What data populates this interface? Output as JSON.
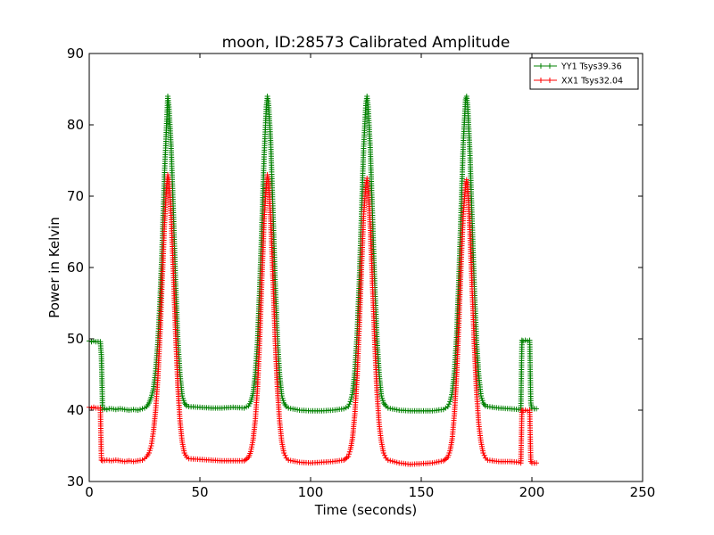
{
  "chart_data": {
    "type": "line",
    "title": "moon, ID:28573 Calibrated Amplitude",
    "xlabel": "Time (seconds)",
    "ylabel": "Power in Kelvin",
    "xlim": [
      0,
      250
    ],
    "ylim": [
      30,
      90
    ],
    "xticks": [
      0,
      50,
      100,
      150,
      200,
      250
    ],
    "yticks": [
      30,
      40,
      50,
      60,
      70,
      80,
      90
    ],
    "grid": false,
    "legend_position": "top-right",
    "marker": "+",
    "series": [
      {
        "name": "YY1 Tsys39.36",
        "color": "#008000",
        "points": [
          [
            0,
            49.7
          ],
          [
            1,
            49.6
          ],
          [
            2,
            49.7
          ],
          [
            3,
            49.6
          ],
          [
            4,
            49.6
          ],
          [
            5,
            49.6
          ],
          [
            5.5,
            47.5
          ],
          [
            6,
            40.1
          ],
          [
            7,
            40.2
          ],
          [
            8,
            40.1
          ],
          [
            9,
            40.2
          ],
          [
            10,
            40.2
          ],
          [
            12,
            40.1
          ],
          [
            14,
            40.2
          ],
          [
            16,
            40.1
          ],
          [
            18,
            40.0
          ],
          [
            20,
            40.1
          ],
          [
            22,
            40.0
          ],
          [
            24,
            40.2
          ],
          [
            25,
            40.3
          ],
          [
            26,
            40.5
          ],
          [
            27,
            41.0
          ],
          [
            28,
            41.8
          ],
          [
            29,
            43.0
          ],
          [
            30,
            45.5
          ],
          [
            31,
            49.5
          ],
          [
            32,
            55.5
          ],
          [
            33,
            63.5
          ],
          [
            34,
            73.0
          ],
          [
            35,
            80.5
          ],
          [
            35.5,
            84.0
          ],
          [
            36,
            82.5
          ],
          [
            37,
            77.0
          ],
          [
            38,
            68.0
          ],
          [
            39,
            58.0
          ],
          [
            40,
            50.0
          ],
          [
            41,
            45.0
          ],
          [
            42,
            42.0
          ],
          [
            43,
            41.0
          ],
          [
            44,
            40.6
          ],
          [
            45,
            40.5
          ],
          [
            50,
            40.4
          ],
          [
            55,
            40.3
          ],
          [
            60,
            40.3
          ],
          [
            65,
            40.4
          ],
          [
            70,
            40.3
          ],
          [
            72,
            40.6
          ],
          [
            73,
            41.2
          ],
          [
            74,
            42.3
          ],
          [
            75,
            45.0
          ],
          [
            76,
            49.5
          ],
          [
            77,
            57.0
          ],
          [
            78,
            66.0
          ],
          [
            79,
            75.5
          ],
          [
            80,
            82.5
          ],
          [
            80.5,
            84.0
          ],
          [
            81,
            83.0
          ],
          [
            82,
            77.5
          ],
          [
            83,
            68.0
          ],
          [
            84,
            58.0
          ],
          [
            85,
            50.0
          ],
          [
            86,
            45.0
          ],
          [
            87,
            42.0
          ],
          [
            88,
            41.0
          ],
          [
            89,
            40.5
          ],
          [
            90,
            40.3
          ],
          [
            95,
            40.0
          ],
          [
            100,
            39.9
          ],
          [
            105,
            39.9
          ],
          [
            110,
            40.0
          ],
          [
            115,
            40.2
          ],
          [
            117,
            40.5
          ],
          [
            118,
            41.2
          ],
          [
            119,
            42.5
          ],
          [
            120,
            45.5
          ],
          [
            121,
            50.5
          ],
          [
            122,
            58.0
          ],
          [
            123,
            67.5
          ],
          [
            124,
            77.0
          ],
          [
            125,
            83.0
          ],
          [
            125.5,
            84.0
          ],
          [
            126,
            82.5
          ],
          [
            127,
            76.5
          ],
          [
            128,
            67.0
          ],
          [
            129,
            57.5
          ],
          [
            130,
            50.0
          ],
          [
            131,
            45.0
          ],
          [
            132,
            42.0
          ],
          [
            133,
            41.0
          ],
          [
            134,
            40.6
          ],
          [
            135,
            40.3
          ],
          [
            140,
            40.0
          ],
          [
            145,
            39.9
          ],
          [
            150,
            39.9
          ],
          [
            155,
            39.9
          ],
          [
            160,
            40.1
          ],
          [
            162,
            40.5
          ],
          [
            163,
            41.2
          ],
          [
            164,
            42.5
          ],
          [
            165,
            45.5
          ],
          [
            166,
            50.5
          ],
          [
            167,
            58.5
          ],
          [
            168,
            68.0
          ],
          [
            169,
            77.5
          ],
          [
            170,
            83.5
          ],
          [
            170.5,
            84.0
          ],
          [
            171,
            82.5
          ],
          [
            172,
            76.0
          ],
          [
            173,
            66.5
          ],
          [
            174,
            57.0
          ],
          [
            175,
            49.5
          ],
          [
            176,
            44.8
          ],
          [
            177,
            42.0
          ],
          [
            178,
            41.0
          ],
          [
            179,
            40.6
          ],
          [
            180,
            40.5
          ],
          [
            185,
            40.3
          ],
          [
            190,
            40.2
          ],
          [
            194,
            40.1
          ],
          [
            195,
            40.0
          ],
          [
            195.5,
            49.8
          ],
          [
            196,
            49.7
          ],
          [
            197,
            49.8
          ],
          [
            198,
            49.7
          ],
          [
            199,
            49.8
          ],
          [
            199.5,
            41.0
          ],
          [
            200,
            40.2
          ],
          [
            201,
            40.2
          ],
          [
            202,
            40.2
          ]
        ]
      },
      {
        "name": "XX1 Tsys32.04",
        "color": "#ff0000",
        "points": [
          [
            0,
            40.4
          ],
          [
            1,
            40.3
          ],
          [
            2,
            40.4
          ],
          [
            3,
            40.3
          ],
          [
            4,
            40.3
          ],
          [
            5,
            40.3
          ],
          [
            5.5,
            33.0
          ],
          [
            6,
            32.9
          ],
          [
            8,
            33.0
          ],
          [
            10,
            32.9
          ],
          [
            12,
            33.0
          ],
          [
            14,
            32.9
          ],
          [
            16,
            32.8
          ],
          [
            18,
            32.9
          ],
          [
            20,
            32.8
          ],
          [
            22,
            32.9
          ],
          [
            24,
            33.0
          ],
          [
            25,
            33.2
          ],
          [
            26,
            33.5
          ],
          [
            27,
            34.0
          ],
          [
            28,
            35.0
          ],
          [
            29,
            37.0
          ],
          [
            30,
            40.0
          ],
          [
            31,
            44.5
          ],
          [
            32,
            51.0
          ],
          [
            33,
            58.5
          ],
          [
            34,
            66.0
          ],
          [
            35,
            71.5
          ],
          [
            35.5,
            73.0
          ],
          [
            36,
            72.0
          ],
          [
            37,
            67.0
          ],
          [
            38,
            59.5
          ],
          [
            39,
            51.0
          ],
          [
            40,
            43.5
          ],
          [
            41,
            38.5
          ],
          [
            42,
            35.5
          ],
          [
            43,
            34.0
          ],
          [
            44,
            33.4
          ],
          [
            45,
            33.2
          ],
          [
            50,
            33.1
          ],
          [
            55,
            33.0
          ],
          [
            60,
            32.9
          ],
          [
            65,
            32.9
          ],
          [
            70,
            32.9
          ],
          [
            72,
            33.4
          ],
          [
            73,
            34.2
          ],
          [
            74,
            35.8
          ],
          [
            75,
            38.5
          ],
          [
            76,
            43.0
          ],
          [
            77,
            50.0
          ],
          [
            78,
            58.5
          ],
          [
            79,
            66.5
          ],
          [
            80,
            71.5
          ],
          [
            80.5,
            73.0
          ],
          [
            81,
            72.0
          ],
          [
            82,
            66.5
          ],
          [
            83,
            58.5
          ],
          [
            84,
            50.0
          ],
          [
            85,
            43.0
          ],
          [
            86,
            38.5
          ],
          [
            87,
            35.5
          ],
          [
            88,
            34.0
          ],
          [
            89,
            33.3
          ],
          [
            90,
            33.0
          ],
          [
            95,
            32.7
          ],
          [
            100,
            32.6
          ],
          [
            105,
            32.7
          ],
          [
            110,
            32.8
          ],
          [
            115,
            33.0
          ],
          [
            117,
            33.5
          ],
          [
            118,
            34.5
          ],
          [
            119,
            36.2
          ],
          [
            120,
            39.5
          ],
          [
            121,
            44.5
          ],
          [
            122,
            52.0
          ],
          [
            123,
            60.0
          ],
          [
            124,
            67.5
          ],
          [
            125,
            71.5
          ],
          [
            125.5,
            72.5
          ],
          [
            126,
            71.0
          ],
          [
            127,
            65.5
          ],
          [
            128,
            57.5
          ],
          [
            129,
            49.5
          ],
          [
            130,
            42.5
          ],
          [
            131,
            38.0
          ],
          [
            132,
            35.5
          ],
          [
            133,
            34.0
          ],
          [
            134,
            33.3
          ],
          [
            135,
            33.0
          ],
          [
            140,
            32.6
          ],
          [
            145,
            32.4
          ],
          [
            150,
            32.5
          ],
          [
            155,
            32.6
          ],
          [
            160,
            32.9
          ],
          [
            162,
            33.4
          ],
          [
            163,
            34.3
          ],
          [
            164,
            36.0
          ],
          [
            165,
            39.5
          ],
          [
            166,
            45.0
          ],
          [
            167,
            52.5
          ],
          [
            168,
            60.5
          ],
          [
            169,
            67.5
          ],
          [
            170,
            71.5
          ],
          [
            170.5,
            72.3
          ],
          [
            171,
            71.0
          ],
          [
            172,
            65.0
          ],
          [
            173,
            57.0
          ],
          [
            174,
            49.0
          ],
          [
            175,
            42.5
          ],
          [
            176,
            38.0
          ],
          [
            177,
            35.5
          ],
          [
            178,
            34.0
          ],
          [
            179,
            33.3
          ],
          [
            180,
            33.0
          ],
          [
            185,
            32.8
          ],
          [
            190,
            32.8
          ],
          [
            194,
            32.7
          ],
          [
            195,
            32.6
          ],
          [
            195.5,
            40.0
          ],
          [
            196,
            39.9
          ],
          [
            197,
            40.0
          ],
          [
            198,
            39.9
          ],
          [
            199,
            40.0
          ],
          [
            199.5,
            32.8
          ],
          [
            200,
            32.6
          ],
          [
            201,
            32.6
          ],
          [
            202,
            32.6
          ]
        ]
      }
    ]
  }
}
